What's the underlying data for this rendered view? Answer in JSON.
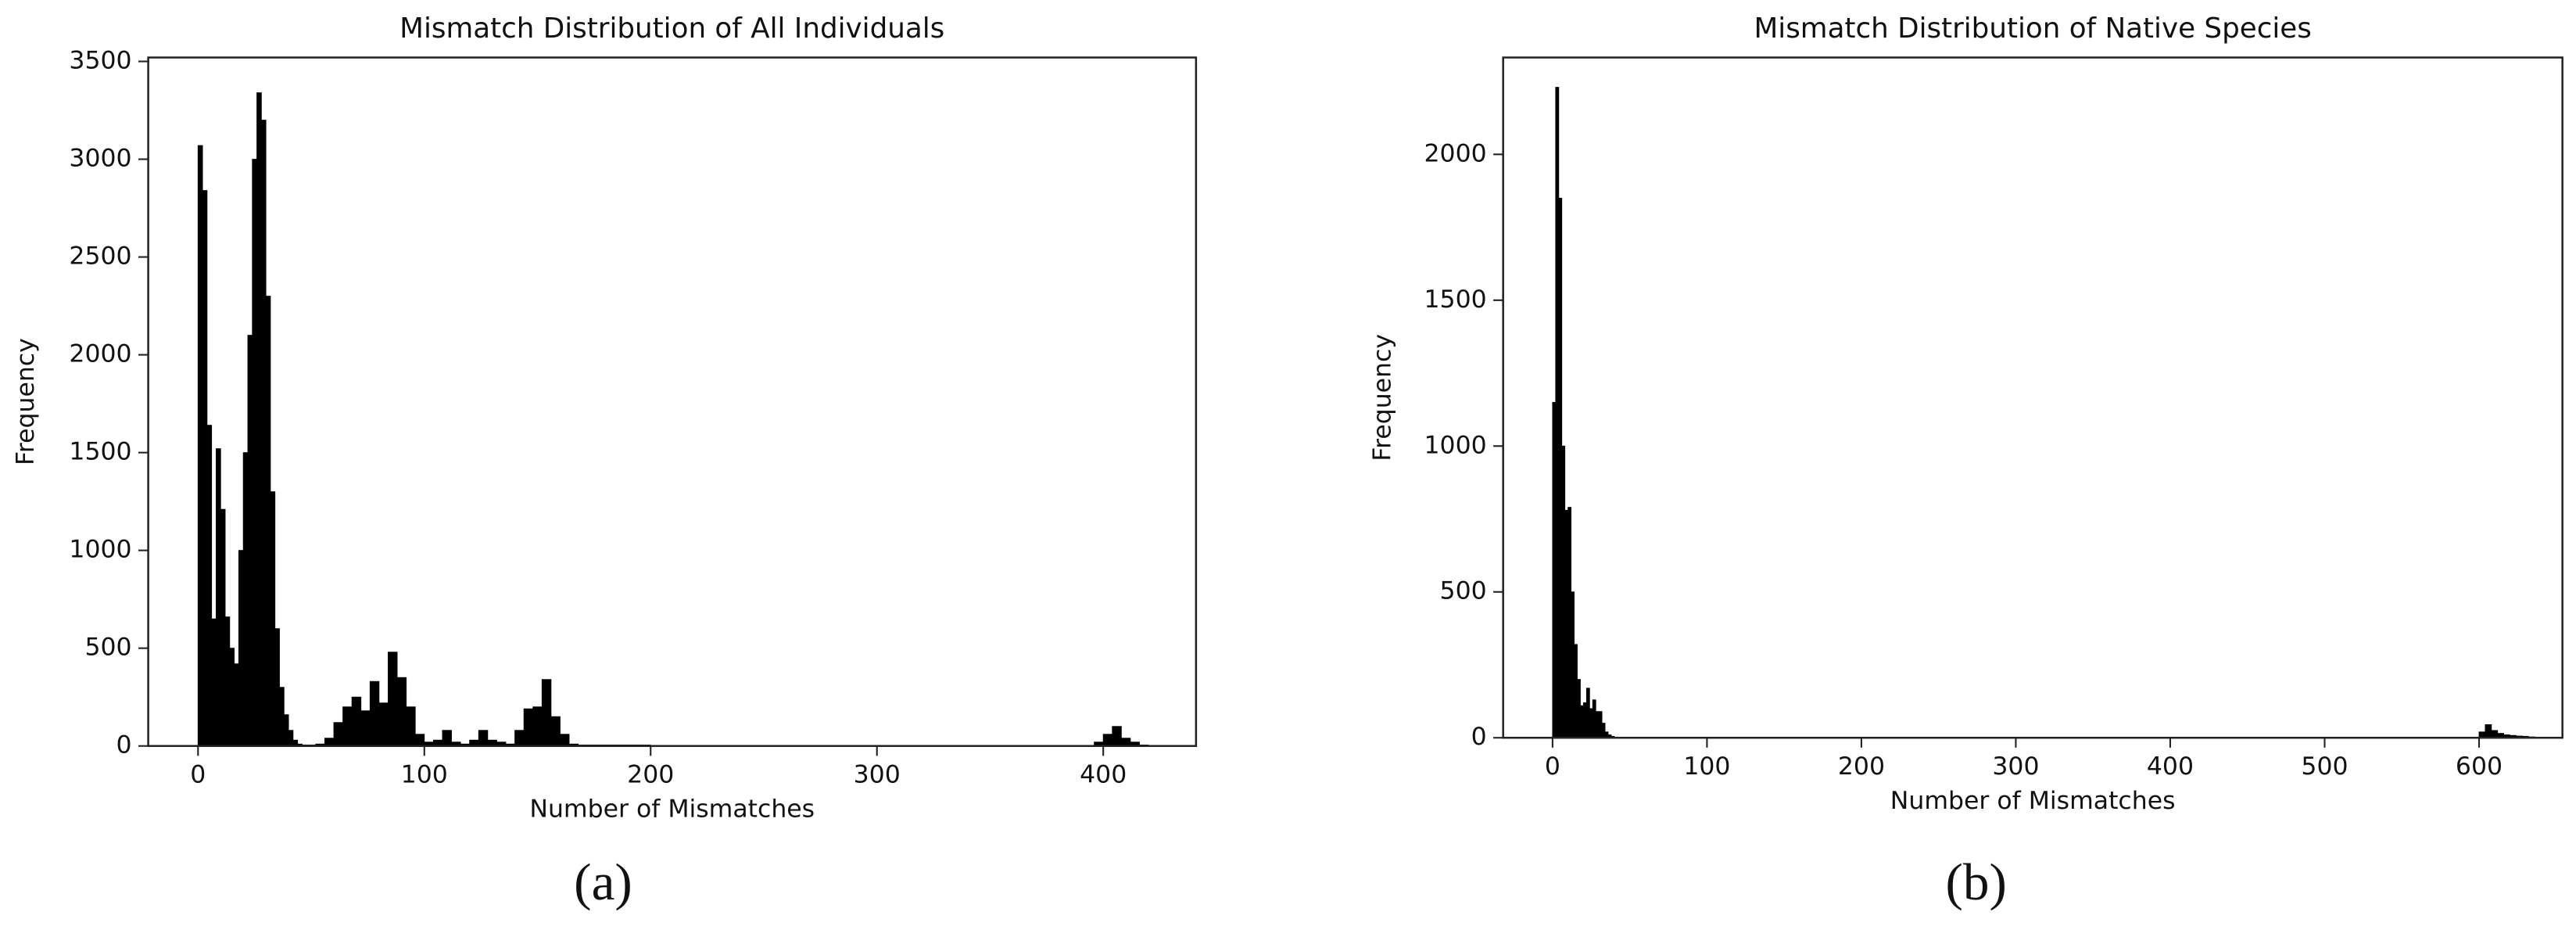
{
  "chart_data": [
    {
      "type": "histogram",
      "title": "Mismatch Distribution of All Individuals",
      "x_label": "Number of Mismatches",
      "y_label": "Frequency",
      "caption": "(a)",
      "color": "#000000",
      "bins": [
        0,
        2,
        4,
        6,
        8,
        10,
        12,
        14,
        16,
        18,
        20,
        22,
        24,
        26,
        28,
        30,
        32,
        34,
        36,
        38,
        40,
        42,
        44,
        46,
        48,
        52,
        56,
        60,
        64,
        68,
        72,
        76,
        80,
        84,
        88,
        92,
        96,
        100,
        104,
        108,
        112,
        116,
        120,
        124,
        128,
        132,
        136,
        140,
        144,
        148,
        152,
        156,
        160,
        164,
        168,
        200,
        300,
        396,
        400,
        404,
        408,
        412,
        416,
        420,
        430
      ],
      "counts": [
        3070,
        2840,
        1640,
        650,
        1520,
        1210,
        660,
        500,
        420,
        1000,
        1500,
        2100,
        3000,
        3340,
        3200,
        2300,
        1300,
        600,
        300,
        160,
        80,
        30,
        10,
        5,
        5,
        10,
        40,
        120,
        200,
        250,
        180,
        330,
        220,
        480,
        350,
        200,
        60,
        20,
        30,
        80,
        20,
        10,
        30,
        80,
        30,
        20,
        10,
        80,
        190,
        200,
        340,
        150,
        60,
        10,
        5,
        2,
        1,
        20,
        60,
        100,
        40,
        20,
        5,
        2
      ],
      "xlim": [
        -22,
        441
      ],
      "ylim": [
        0,
        3520
      ],
      "xticks": [
        0,
        100,
        200,
        300,
        400
      ],
      "yticks": [
        0,
        500,
        1000,
        1500,
        2000,
        2500,
        3000,
        3500
      ]
    },
    {
      "type": "histogram",
      "title": "Mismatch Distribution of Native Species",
      "x_label": "Number of Mismatches",
      "y_label": "Frequency",
      "caption": "(b)",
      "color": "#000000",
      "bins": [
        0,
        2,
        4,
        6,
        8,
        10,
        12,
        14,
        16,
        18,
        20,
        22,
        24,
        26,
        28,
        30,
        32,
        34,
        36,
        38,
        40,
        600,
        604,
        608,
        612,
        616,
        620,
        624,
        628,
        632,
        636,
        640
      ],
      "counts": [
        1150,
        2230,
        1850,
        1000,
        780,
        790,
        500,
        320,
        200,
        110,
        120,
        170,
        100,
        130,
        90,
        90,
        50,
        20,
        10,
        5,
        2,
        20,
        45,
        25,
        15,
        10,
        8,
        6,
        5,
        3,
        2
      ],
      "xlim": [
        -32,
        654
      ],
      "ylim": [
        0,
        2332
      ],
      "xticks": [
        0,
        100,
        200,
        300,
        400,
        500,
        600
      ],
      "yticks": [
        0,
        500,
        1000,
        1500,
        2000
      ]
    }
  ]
}
